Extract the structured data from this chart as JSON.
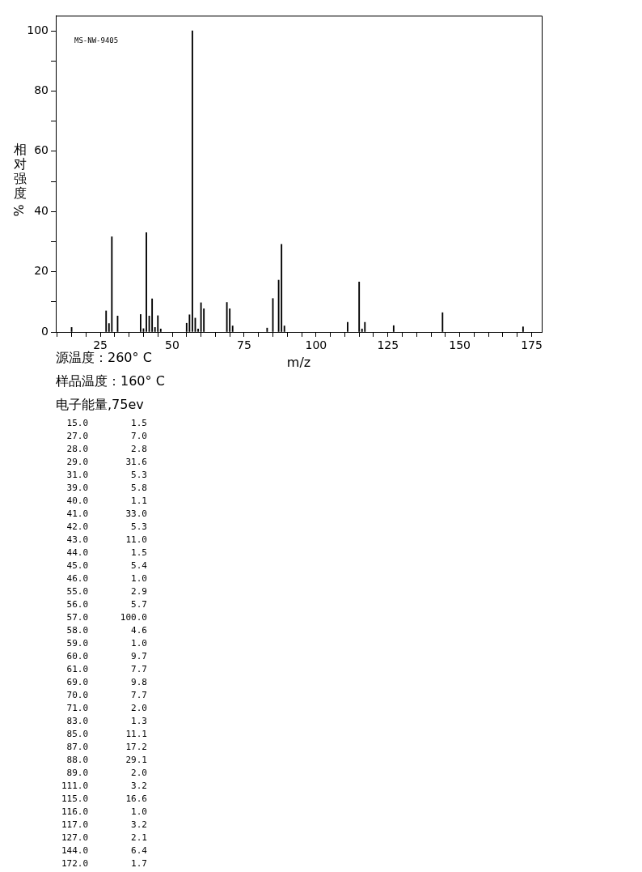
{
  "chart_data": {
    "type": "bar",
    "xlabel": "m/z",
    "ylabel": "相对强度%",
    "x": [
      15,
      27,
      28,
      29,
      31,
      39,
      40,
      41,
      42,
      43,
      44,
      45,
      46,
      55,
      56,
      57,
      58,
      59,
      60,
      61,
      69,
      70,
      71,
      83,
      85,
      87,
      88,
      89,
      111,
      115,
      116,
      117,
      127,
      144,
      172
    ],
    "values": [
      1.5,
      7.0,
      2.8,
      31.6,
      5.3,
      5.8,
      1.1,
      33.0,
      5.3,
      11.0,
      1.5,
      5.4,
      1.0,
      2.9,
      5.7,
      100.0,
      4.6,
      1.0,
      9.7,
      7.7,
      9.8,
      7.7,
      2.0,
      1.3,
      11.1,
      17.2,
      29.1,
      2.0,
      3.2,
      16.6,
      1.0,
      3.2,
      2.1,
      6.4,
      1.7
    ],
    "color": "#000000",
    "xlim": [
      9.5,
      178.5
    ],
    "xticks": [
      {
        "value": 10,
        "label": null
      },
      {
        "value": 15,
        "label": null
      },
      {
        "value": 20,
        "label": null
      },
      25,
      {
        "value": 30,
        "label": null
      },
      {
        "value": 35,
        "label": null
      },
      {
        "value": 40,
        "label": null
      },
      {
        "value": 45,
        "label": null
      },
      50,
      {
        "value": 55,
        "label": null
      },
      {
        "value": 60,
        "label": null
      },
      {
        "value": 65,
        "label": null
      },
      {
        "value": 70,
        "label": null
      },
      75,
      {
        "value": 80,
        "label": null
      },
      {
        "value": 85,
        "label": null
      },
      {
        "value": 90,
        "label": null
      },
      {
        "value": 95,
        "label": null
      },
      100,
      {
        "value": 105,
        "label": null
      },
      {
        "value": 110,
        "label": null
      },
      {
        "value": 115,
        "label": null
      },
      {
        "value": 120,
        "label": null
      },
      125,
      {
        "value": 130,
        "label": null
      },
      {
        "value": 135,
        "label": null
      },
      {
        "value": 140,
        "label": null
      },
      {
        "value": 145,
        "label": null
      },
      150,
      {
        "value": 155,
        "label": null
      },
      {
        "value": 160,
        "label": null
      },
      {
        "value": 165,
        "label": null
      },
      {
        "value": 170,
        "label": null
      },
      175
    ],
    "ylim": [
      0,
      105
    ],
    "yticks": [
      0,
      {
        "value": 10,
        "label": null
      },
      20,
      {
        "value": 30,
        "label": null
      },
      40,
      {
        "value": 50,
        "label": null
      },
      60,
      {
        "value": 70,
        "label": null
      },
      80,
      {
        "value": 90,
        "label": null
      },
      100
    ],
    "grid": false,
    "legend": false,
    "annotations": [
      "MS-NW-9405",
      "源温度：260° C",
      "样品温度：160° C",
      "电子能量,75ev",
      " 15.0        1.5",
      " 27.0        7.0",
      " 28.0        2.8",
      " 29.0       31.6",
      " 31.0        5.3",
      " 39.0        5.8",
      " 40.0        1.1",
      " 41.0       33.0",
      " 42.0        5.3",
      " 43.0       11.0",
      " 44.0        1.5",
      " 45.0        5.4",
      " 46.0        1.0",
      " 55.0        2.9",
      " 56.0        5.7",
      " 57.0      100.0",
      " 58.0        4.6",
      " 59.0        1.0",
      " 60.0        9.7",
      " 61.0        7.7",
      " 69.0        9.8",
      " 70.0        7.7",
      " 71.0        2.0",
      " 83.0        1.3",
      " 85.0       11.1",
      " 87.0       17.2",
      " 88.0       29.1",
      " 89.0        2.0",
      "111.0        3.2",
      "115.0       16.6",
      "116.0        1.0",
      "117.0        3.2",
      "127.0        2.1",
      "144.0        6.4",
      "172.0        1.7"
    ]
  }
}
